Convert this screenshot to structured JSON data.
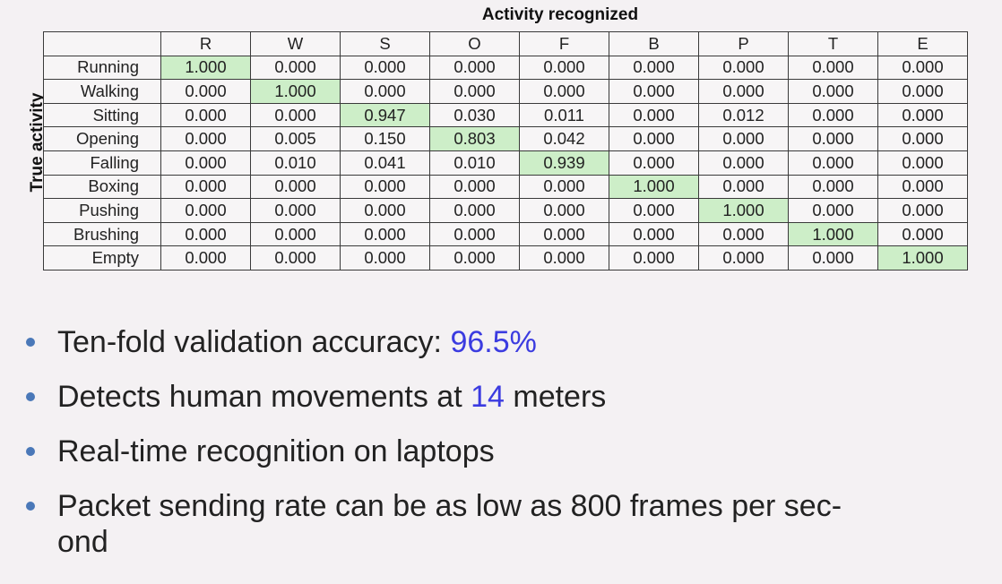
{
  "table": {
    "x_title": "Activity recognized",
    "y_title": "True activity",
    "columns": [
      "R",
      "W",
      "S",
      "O",
      "F",
      "B",
      "P",
      "T",
      "E"
    ],
    "rows": [
      {
        "label": "Running",
        "values": [
          "1.000",
          "0.000",
          "0.000",
          "0.000",
          "0.000",
          "0.000",
          "0.000",
          "0.000",
          "0.000"
        ]
      },
      {
        "label": "Walking",
        "values": [
          "0.000",
          "1.000",
          "0.000",
          "0.000",
          "0.000",
          "0.000",
          "0.000",
          "0.000",
          "0.000"
        ]
      },
      {
        "label": "Sitting",
        "values": [
          "0.000",
          "0.000",
          "0.947",
          "0.030",
          "0.011",
          "0.000",
          "0.012",
          "0.000",
          "0.000"
        ]
      },
      {
        "label": "Opening",
        "values": [
          "0.000",
          "0.005",
          "0.150",
          "0.803",
          "0.042",
          "0.000",
          "0.000",
          "0.000",
          "0.000"
        ]
      },
      {
        "label": "Falling",
        "values": [
          "0.000",
          "0.010",
          "0.041",
          "0.010",
          "0.939",
          "0.000",
          "0.000",
          "0.000",
          "0.000"
        ]
      },
      {
        "label": "Boxing",
        "values": [
          "0.000",
          "0.000",
          "0.000",
          "0.000",
          "0.000",
          "1.000",
          "0.000",
          "0.000",
          "0.000"
        ]
      },
      {
        "label": "Pushing",
        "values": [
          "0.000",
          "0.000",
          "0.000",
          "0.000",
          "0.000",
          "0.000",
          "1.000",
          "0.000",
          "0.000"
        ]
      },
      {
        "label": "Brushing",
        "values": [
          "0.000",
          "0.000",
          "0.000",
          "0.000",
          "0.000",
          "0.000",
          "0.000",
          "1.000",
          "0.000"
        ]
      },
      {
        "label": "Empty",
        "values": [
          "0.000",
          "0.000",
          "0.000",
          "0.000",
          "0.000",
          "0.000",
          "0.000",
          "0.000",
          "1.000"
        ]
      }
    ],
    "diagonal_color": "#cdeec8"
  },
  "bullets": [
    {
      "text": "Ten-fold validation accuracy: ",
      "highlight": "96.5%",
      "tail": ""
    },
    {
      "text": "Detects human movements at ",
      "highlight": "14",
      "tail": " meters"
    },
    {
      "text": "Real-time recognition on laptops",
      "highlight": "",
      "tail": ""
    },
    {
      "text": "Packet sending rate can be as low as 800 frames per sec-",
      "highlight": "",
      "tail": "",
      "line2": "ond"
    }
  ],
  "colors": {
    "highlight": "#3b3be0",
    "bullet_dot": "#4a78b8"
  }
}
